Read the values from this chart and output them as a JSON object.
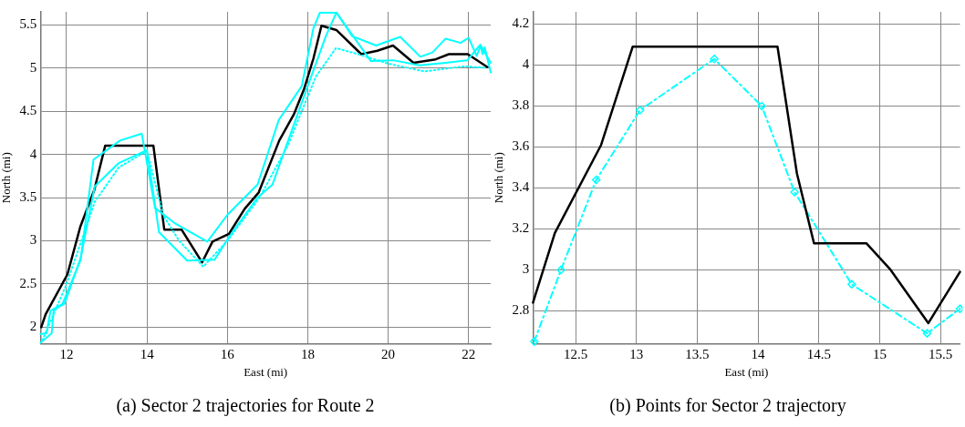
{
  "chart_data": [
    {
      "type": "line",
      "title": "(a) Sector 2 trajectories for Route 2",
      "xlabel": "East (mi)",
      "ylabel": "North (mi)",
      "xlim": [
        11.35,
        22.55
      ],
      "ylim": [
        1.81,
        5.65
      ],
      "xticks": [
        12,
        14,
        16,
        18,
        20,
        22
      ],
      "yticks": [
        2,
        2.5,
        3,
        3.5,
        4,
        4.5,
        5,
        5.5
      ],
      "grid": true,
      "legend": false,
      "marker": "none",
      "series": [
        {
          "color": "#00ffff",
          "line_style": "dotted",
          "x": [
            11.4,
            12.0,
            12.7,
            13.3,
            14.0,
            14.4,
            14.8,
            15.4,
            16.0,
            16.8,
            17.5,
            18.2,
            18.7,
            19.25,
            20.0,
            20.9,
            21.9,
            22.45
          ],
          "values": [
            1.85,
            2.5,
            3.45,
            3.85,
            4.04,
            3.3,
            3.0,
            2.7,
            3.0,
            3.5,
            4.1,
            4.9,
            5.23,
            5.16,
            5.05,
            4.96,
            5.02,
            5.0
          ]
        },
        {
          "color": "#00ffff",
          "line_style": "solid",
          "x": [
            11.35,
            11.5,
            11.6,
            11.9,
            12.35,
            12.67,
            13.33,
            13.87,
            14.2,
            14.7,
            15.5,
            16.0,
            16.75,
            17.28,
            17.85,
            18.14,
            18.3,
            18.72,
            19.1,
            19.7,
            20.3,
            20.8,
            21.1,
            21.43,
            21.8,
            22.0,
            22.2,
            22.3,
            22.35,
            22.4,
            22.55
          ],
          "values": [
            1.92,
            1.93,
            2.19,
            2.27,
            2.78,
            3.94,
            4.16,
            4.24,
            3.38,
            3.2,
            2.99,
            3.3,
            3.65,
            4.4,
            4.79,
            5.46,
            5.64,
            5.64,
            5.37,
            5.26,
            5.36,
            5.13,
            5.18,
            5.34,
            5.29,
            5.35,
            5.14,
            5.26,
            5.16,
            5.24,
            4.95
          ]
        },
        {
          "color": "#00ffff",
          "line_style": "solid",
          "x": [
            11.35,
            11.63,
            11.68,
            11.95,
            12.35,
            12.7,
            13.3,
            14.0,
            14.3,
            15.0,
            15.68,
            16.05,
            16.75,
            17.12,
            17.92,
            18.45,
            18.71,
            19.57,
            20.12,
            20.78,
            21.43,
            21.97,
            22.29,
            22.55
          ],
          "values": [
            1.82,
            1.93,
            2.2,
            2.27,
            2.8,
            3.63,
            3.9,
            4.05,
            3.1,
            2.77,
            2.78,
            3.05,
            3.5,
            3.65,
            4.69,
            5.37,
            5.64,
            5.08,
            5.09,
            5.03,
            5.06,
            5.09,
            5.27,
            5.06
          ]
        },
        {
          "color": "#000000",
          "line_style": "solid",
          "x": [
            11.37,
            11.48,
            12.02,
            12.34,
            12.69,
            12.96,
            14.16,
            14.43,
            14.86,
            15.37,
            15.63,
            16.04,
            16.43,
            16.78,
            17.29,
            17.65,
            17.91,
            18.14,
            18.34,
            18.71,
            19.33,
            19.73,
            20.12,
            20.63,
            21.18,
            21.51,
            21.98,
            22.47
          ],
          "values": [
            2.0,
            2.15,
            2.61,
            3.16,
            3.59,
            4.1,
            4.1,
            3.13,
            3.13,
            2.75,
            2.99,
            3.08,
            3.37,
            3.56,
            4.16,
            4.46,
            4.76,
            5.11,
            5.49,
            5.44,
            5.16,
            5.2,
            5.26,
            5.06,
            5.1,
            5.16,
            5.16,
            5.01
          ]
        }
      ]
    },
    {
      "type": "line",
      "title": "(b) Points for Sector 2 trajectory",
      "xlabel": "East (mi)",
      "ylabel": "North (mi)",
      "xlim": [
        12.15,
        15.66
      ],
      "ylim": [
        2.64,
        4.26
      ],
      "xticks": [
        12.5,
        13,
        13.5,
        14,
        14.5,
        15,
        15.5
      ],
      "yticks": [
        2.8,
        3,
        3.2,
        3.4,
        3.6,
        3.8,
        4,
        4.2
      ],
      "grid": true,
      "legend": false,
      "series": [
        {
          "color": "#000000",
          "line_style": "solid",
          "marker": "none",
          "x": [
            12.15,
            12.33,
            12.71,
            12.97,
            14.16,
            14.32,
            14.46,
            14.89,
            15.09,
            15.4,
            15.66
          ],
          "values": [
            2.84,
            3.18,
            3.61,
            4.09,
            4.09,
            3.47,
            3.13,
            3.13,
            3.0,
            2.74,
            2.99
          ]
        },
        {
          "color": "#00ffff",
          "line_style": "dashed",
          "marker": "diamond",
          "x": [
            12.16,
            12.38,
            12.67,
            13.03,
            13.64,
            14.03,
            14.3,
            14.77,
            15.39,
            15.66
          ],
          "values": [
            2.65,
            3.0,
            3.44,
            3.78,
            4.03,
            3.8,
            3.38,
            2.93,
            2.69,
            2.81
          ]
        }
      ]
    }
  ]
}
